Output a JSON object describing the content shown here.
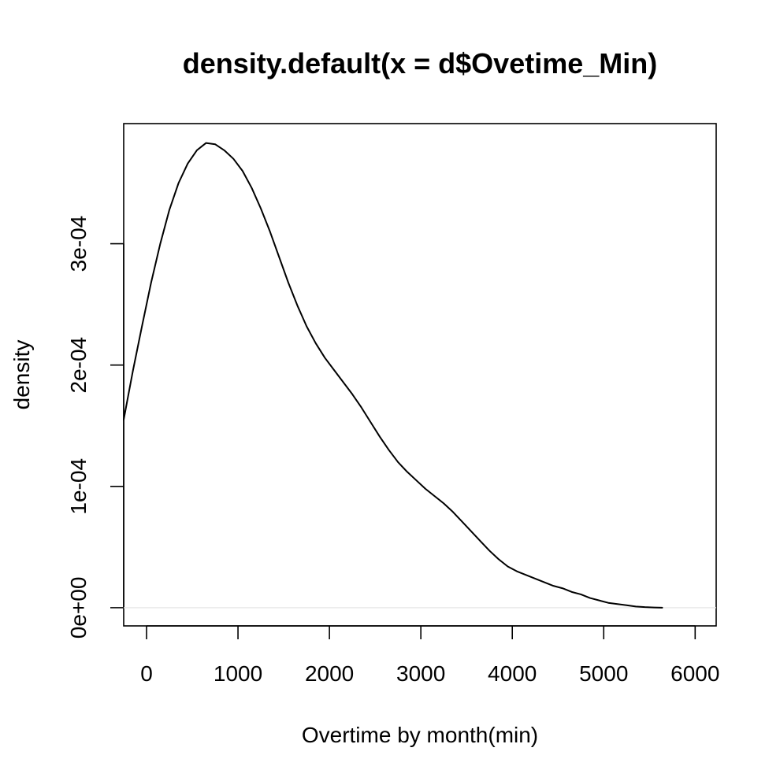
{
  "chart_data": {
    "type": "line",
    "title": "density.default(x = d$Ovetime_Min)",
    "xlabel": "Overtime by month(min)",
    "ylabel": "density",
    "xlim": [
      -250,
      6230
    ],
    "ylim": [
      -1.5e-05,
      0.000399
    ],
    "grid": false,
    "legend": "none",
    "x_ticks": [
      0,
      1000,
      2000,
      3000,
      4000,
      5000,
      6000
    ],
    "x_tick_labels": [
      "0",
      "1000",
      "2000",
      "3000",
      "4000",
      "5000",
      "6000"
    ],
    "y_ticks": [
      0,
      0.0001,
      0.0002,
      0.0003
    ],
    "y_tick_labels": [
      "0e+00",
      "1e-04",
      "2e-04",
      "3e-04"
    ],
    "baseline": 0,
    "line_color": "#000000",
    "baseline_color": "#e6e6e6",
    "series": [
      {
        "x": [
          -250,
          -150,
          -50,
          50,
          150,
          250,
          350,
          450,
          550,
          650,
          750,
          850,
          950,
          1050,
          1150,
          1250,
          1350,
          1450,
          1550,
          1650,
          1750,
          1850,
          1950,
          2050,
          2150,
          2250,
          2350,
          2450,
          2550,
          2650,
          2750,
          2850,
          2950,
          3050,
          3150,
          3250,
          3350,
          3450,
          3550,
          3650,
          3750,
          3850,
          3950,
          4050,
          4150,
          4250,
          4350,
          4450,
          4550,
          4650,
          4750,
          4850,
          4950,
          5050,
          5150,
          5250,
          5350,
          5450,
          5550,
          5640
        ],
        "y": [
          0.000155,
          0.000195,
          0.000232,
          0.000268,
          0.0003,
          0.000328,
          0.00035,
          0.000366,
          0.000377,
          0.000383,
          0.000382,
          0.000377,
          0.00037,
          0.00036,
          0.000346,
          0.000329,
          0.00031,
          0.000289,
          0.000268,
          0.000249,
          0.000232,
          0.000218,
          0.000206,
          0.000196,
          0.000186,
          0.000176,
          0.000165,
          0.000153,
          0.000141,
          0.00013,
          0.00012,
          0.000112,
          0.000105,
          9.8e-05,
          9.2e-05,
          8.6e-05,
          7.9e-05,
          7.1e-05,
          6.3e-05,
          5.5e-05,
          4.7e-05,
          4e-05,
          3.4e-05,
          3e-05,
          2.7e-05,
          2.4e-05,
          2.1e-05,
          1.8e-05,
          1.6e-05,
          1.3e-05,
          1.1e-05,
          8e-06,
          6e-06,
          4e-06,
          3e-06,
          2e-06,
          1e-06,
          5e-07,
          2e-07,
          0.0
        ]
      }
    ]
  }
}
